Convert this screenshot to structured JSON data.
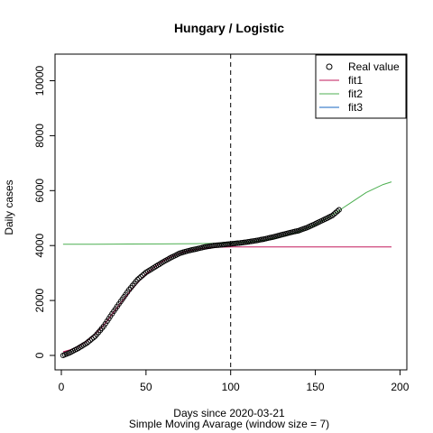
{
  "chart_data": {
    "type": "scatter",
    "title": "Hungary / Logistic",
    "xlabel": "Days since 2020-03-21",
    "xlabel2": "Simple Moving Avarage (window size = 7)",
    "ylabel": "Daily cases",
    "xlim": [
      0,
      200
    ],
    "ylim": [
      0,
      11000
    ],
    "x_ticks": [
      0,
      50,
      100,
      150,
      200
    ],
    "y_ticks": [
      0,
      2000,
      4000,
      6000,
      8000,
      10000
    ],
    "vline_x": 100,
    "legend": {
      "placement": "top-right",
      "entries": [
        "Real value",
        "fit1",
        "fit2",
        "fit3"
      ]
    },
    "series": [
      {
        "name": "Real value",
        "kind": "points",
        "color": "#000000",
        "x": [
          1,
          5,
          10,
          15,
          20,
          25,
          30,
          35,
          40,
          45,
          50,
          55,
          60,
          65,
          70,
          75,
          80,
          85,
          90,
          95,
          100,
          105,
          110,
          115,
          120,
          125,
          130,
          135,
          140,
          145,
          150,
          155,
          160,
          164
        ],
        "y": [
          0,
          100,
          260,
          450,
          700,
          1060,
          1520,
          1960,
          2390,
          2760,
          3020,
          3210,
          3400,
          3570,
          3720,
          3810,
          3880,
          3950,
          4000,
          4030,
          4060,
          4090,
          4130,
          4180,
          4240,
          4310,
          4390,
          4470,
          4540,
          4650,
          4790,
          4940,
          5090,
          5300
        ]
      },
      {
        "name": "fit1",
        "kind": "line",
        "color": "#c2185b",
        "x": [
          1,
          5,
          10,
          15,
          20,
          25,
          30,
          35,
          40,
          45,
          50,
          55,
          60,
          65,
          70,
          75,
          80,
          85,
          90,
          95,
          100,
          110,
          120,
          130,
          140,
          150,
          160,
          170,
          180,
          195
        ],
        "y": [
          130,
          200,
          330,
          520,
          780,
          1100,
          1500,
          1900,
          2290,
          2640,
          2960,
          3220,
          3430,
          3600,
          3720,
          3810,
          3870,
          3910,
          3930,
          3940,
          3950,
          3950,
          3950,
          3950,
          3950,
          3950,
          3950,
          3950,
          3950,
          3950
        ]
      },
      {
        "name": "fit2",
        "kind": "line",
        "color": "#4caf50",
        "x": [
          1,
          20,
          40,
          60,
          80,
          90,
          100,
          110,
          120,
          130,
          140,
          150,
          160,
          170,
          180,
          190,
          195
        ],
        "y": [
          4050,
          4050,
          4055,
          4060,
          4070,
          4080,
          4090,
          4120,
          4190,
          4320,
          4500,
          4760,
          5110,
          5520,
          5930,
          6220,
          6320
        ]
      },
      {
        "name": "fit3",
        "kind": "line",
        "color": "#1565c0",
        "x": [],
        "y": []
      }
    ]
  }
}
